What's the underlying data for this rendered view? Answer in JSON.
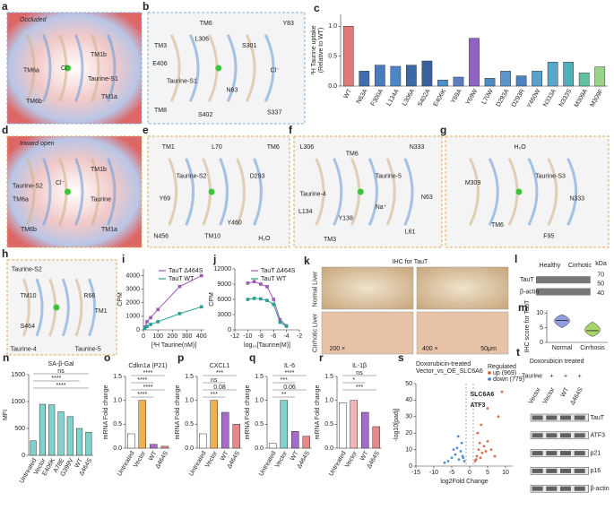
{
  "figure_panels": [
    {
      "letter": "a",
      "title": "Occluded",
      "labels": [
        "TM1b",
        "TM6a",
        "Cl⁻",
        "Taurine-S1",
        "TM6b",
        "TM1a"
      ]
    },
    {
      "letter": "b",
      "labels": [
        "TM6",
        "Y83",
        "L306",
        "S301",
        "TM3",
        "E406",
        "Cl⁻",
        "Taurine-S1",
        "TM8",
        "N63",
        "S402",
        "S337"
      ]
    },
    {
      "letter": "d",
      "title": "Inward open",
      "labels": [
        "TM1b",
        "Taurine-S2",
        "TM6a",
        "Cl⁻",
        "Taurine",
        "TM6b",
        "TM1a"
      ]
    },
    {
      "letter": "e",
      "labels": [
        "TM1",
        "L70",
        "TM6",
        "Taurine-S2",
        "D293",
        "Y69",
        "N456",
        "TM10",
        "Y460",
        "H₂O"
      ]
    },
    {
      "letter": "f",
      "labels": [
        "L306",
        "TM6",
        "N333",
        "Taurine-5",
        "Taurine-4",
        "L134",
        "Y138",
        "Na⁺",
        "N63",
        "TM3",
        "L61"
      ]
    },
    {
      "letter": "g",
      "labels": [
        "H₂O",
        "Taurine-S3",
        "M309",
        "N333",
        "TM6",
        "F95"
      ]
    },
    {
      "letter": "h",
      "labels": [
        "Taurine-S2",
        "TM10",
        "R66",
        "TM1",
        "S464",
        "Taurine-4",
        "Taurine-5"
      ]
    },
    {
      "letter": "k",
      "title": "IHC for TauT",
      "labels": [
        "Normal Liver",
        "Cirrhotic Liver",
        "200 ×",
        "400 ×",
        "50μm"
      ]
    },
    {
      "letter": "l",
      "labels": [
        "Healthy",
        "Cirrhotic",
        "TauT",
        "β-actin",
        "kDa",
        "70",
        "50",
        "40"
      ]
    },
    {
      "letter": "t",
      "labels": [
        "Doxorubicin treated",
        "Taurine",
        "-",
        "+",
        "+",
        "+",
        "Vector",
        "Vector",
        "WT",
        "Δ464S",
        "TauT",
        "ATF3",
        "p21",
        "p16",
        "β-actin"
      ]
    }
  ],
  "chart_data": [
    {
      "type": "bar",
      "panel": "c",
      "ylabel": [
        "³H Taurine uptake",
        "(Relative to WT)"
      ],
      "categories": [
        "WT",
        "N63A",
        "F300A",
        "L134A",
        "L306A",
        "S402A",
        "E406K",
        "Y69A",
        "Y69W",
        "L70W",
        "D293A",
        "D293R",
        "Y460W",
        "N333A",
        "N333S",
        "M309A",
        "M309F"
      ],
      "values": [
        1.0,
        0.25,
        0.35,
        0.33,
        0.35,
        0.42,
        0.1,
        0.15,
        0.8,
        0.13,
        0.25,
        0.17,
        0.25,
        0.4,
        0.4,
        0.22,
        0.32
      ],
      "colors": [
        "#e07a7a",
        "#3f6fb0",
        "#4a7bbd",
        "#4c86c6",
        "#3b6aa8",
        "#3b5f9e",
        "#4d8fc9",
        "#5b7ec0",
        "#8e63c2",
        "#4f8cc6",
        "#5a95cc",
        "#4d82c0",
        "#5aa0d0",
        "#56a8c8",
        "#4eb0b8",
        "#62c0a0",
        "#9ad48a"
      ],
      "ylim": [
        0,
        1.2
      ],
      "yticks": [
        {
          "value": 0,
          "label": "0.0"
        },
        {
          "value": 0.5,
          "label": "0.5"
        },
        {
          "value": 1,
          "label": "1.0"
        }
      ]
    },
    {
      "type": "line",
      "panel": "i",
      "xlabel": "[³H Taurine(nM)]",
      "ylabel": "CPM",
      "x": [
        10,
        25,
        50,
        100,
        250,
        400
      ],
      "xlim": [
        0,
        420
      ],
      "xticks": [
        0,
        100,
        200,
        300,
        400
      ],
      "ylim": [
        0,
        4500
      ],
      "yticks": [
        0,
        1000,
        2000,
        3000,
        4000
      ],
      "series": [
        {
          "name": "TauT Δ464S",
          "color": "#9b59b6",
          "values": [
            200,
            600,
            900,
            1500,
            3200,
            4000
          ]
        },
        {
          "name": "TauT WT",
          "color": "#2a9d8f",
          "values": [
            100,
            250,
            400,
            600,
            1200,
            1700
          ]
        }
      ]
    },
    {
      "type": "line",
      "panel": "j",
      "xlabel": "log₁₀[Taurine(M)]",
      "ylabel": "CPM",
      "x": [
        -10,
        -9,
        -8,
        -7,
        -6,
        -5,
        -4
      ],
      "xlim": [
        -12,
        -2
      ],
      "xticks": [
        -12,
        -10,
        -8,
        -6,
        -4,
        -2
      ],
      "ylim": [
        0,
        12000
      ],
      "yticks": [
        0,
        3000,
        6000,
        9000,
        12000
      ],
      "series": [
        {
          "name": "TauT Δ464S",
          "color": "#9b59b6",
          "values": [
            9200,
            9500,
            9000,
            8500,
            6000,
            2000,
            800
          ]
        },
        {
          "name": "TauT WT",
          "color": "#2a9d8f",
          "values": [
            6000,
            6200,
            6100,
            5800,
            5000,
            1500,
            700
          ]
        }
      ]
    },
    {
      "type": "violin",
      "panel": "m",
      "ylabel": "IHC score for TauT",
      "categories": [
        "Normal",
        "Cirrhosis"
      ],
      "min": [
        5,
        2
      ],
      "median": [
        7.5,
        4
      ],
      "max": [
        9.5,
        7
      ],
      "colors": [
        "#8e9ee0",
        "#a6d66a"
      ],
      "ylim": [
        0,
        11
      ],
      "yticks": [
        0,
        5,
        10
      ]
    },
    {
      "type": "bar",
      "panel": "n",
      "title": "SA-β-Gal",
      "ylabel": "MFI",
      "categories": [
        "Untreated",
        "Vector",
        "E406K",
        "A78E",
        "G399V",
        "WT",
        "Δ464S"
      ],
      "values": [
        270,
        950,
        940,
        810,
        720,
        500,
        430
      ],
      "color": "#7fd3cc",
      "ylim": [
        0,
        1500
      ],
      "yticks": [
        0,
        500,
        1000,
        1500
      ],
      "annotations": [
        "ns",
        "****",
        "****"
      ]
    },
    {
      "type": "bar",
      "panel": "o",
      "title": "Cdkn1a (P21)",
      "ylabel": "mRNA Fold change",
      "categories": [
        "Untreated",
        "Vector",
        "WT",
        "Δ464S"
      ],
      "values": [
        0.3,
        1.0,
        0.08,
        0.04
      ],
      "colors": [
        "#ffffff",
        "#f3b04a",
        "#a46cc8",
        "#e58a8a"
      ],
      "ylim": [
        0,
        1.5
      ],
      "yticks": [
        {
          "value": 0,
          "label": "0.0"
        },
        {
          "value": 0.5,
          "label": "0.5"
        },
        {
          "value": 1,
          "label": "1.0"
        },
        {
          "value": 1.5,
          "label": "1.5"
        }
      ],
      "annotations": [
        "****",
        "****",
        "****",
        "****"
      ]
    },
    {
      "type": "bar",
      "panel": "p",
      "title": "CXCL1",
      "ylabel": "mRNA Fold change",
      "categories": [
        "Untreated",
        "Vector",
        "WT",
        "Δ464S"
      ],
      "values": [
        0.3,
        1.0,
        0.75,
        0.5
      ],
      "colors": [
        "#ffffff",
        "#f3b04a",
        "#a46cc8",
        "#e58a8a"
      ],
      "ylim": [
        0,
        1.5
      ],
      "yticks": [
        {
          "value": 0,
          "label": "0.0"
        },
        {
          "value": 0.5,
          "label": "0.5"
        },
        {
          "value": 1,
          "label": "1.0"
        },
        {
          "value": 1.5,
          "label": "1.5"
        }
      ],
      "annotations": [
        "***",
        "ns",
        "0.08",
        "***"
      ]
    },
    {
      "type": "bar",
      "panel": "q",
      "title": "IL-6",
      "ylabel": "mRNA Fold change",
      "categories": [
        "Untreated",
        "Vector",
        "WT",
        "Δ464S"
      ],
      "values": [
        0.1,
        1.0,
        0.35,
        0.25
      ],
      "colors": [
        "#ffffff",
        "#7fd3cc",
        "#a46cc8",
        "#e58a8a"
      ],
      "ylim": [
        0,
        1.5
      ],
      "yticks": [
        {
          "value": 0,
          "label": "0.0"
        },
        {
          "value": 0.5,
          "label": "0.5"
        },
        {
          "value": 1,
          "label": "1.0"
        },
        {
          "value": 1.5,
          "label": "1.5"
        }
      ],
      "annotations": [
        "****",
        "***",
        "0.06",
        "**"
      ]
    },
    {
      "type": "bar",
      "panel": "r",
      "title": "IL-1β",
      "ylabel": "mRNA Fold change",
      "categories": [
        "Untreated",
        "Vector",
        "WT",
        "Δ464S"
      ],
      "values": [
        0.95,
        1.0,
        0.75,
        0.45
      ],
      "colors": [
        "#ffffff",
        "#f3b6b6",
        "#a46cc8",
        "#e58a8a"
      ],
      "ylim": [
        0,
        1.5
      ],
      "yticks": [
        {
          "value": 0,
          "label": "0.0"
        },
        {
          "value": 0.5,
          "label": "0.5"
        },
        {
          "value": 1,
          "label": "1.0"
        },
        {
          "value": 1.5,
          "label": "1.5"
        }
      ],
      "annotations": [
        "ns",
        "*",
        "***"
      ]
    },
    {
      "type": "scatter",
      "panel": "s",
      "title": [
        "Doxorubicin-treated",
        "Vector_vs_OE_SLC6A6"
      ],
      "xlabel": "log2Fold Change",
      "ylabel": "-log10[padj]",
      "legend_title": "Regulated",
      "xlim": [
        -15,
        12
      ],
      "xticks": [
        -15,
        -10,
        -5,
        0,
        5,
        10
      ],
      "ylim": [
        0,
        50
      ],
      "yticks": [
        0,
        10,
        20,
        30,
        40,
        50
      ],
      "vlines": [
        -1,
        1
      ],
      "annotations": [
        "SLC6A6",
        "ATF3"
      ],
      "series": [
        {
          "name": "up (969)",
          "color": "#d9542c",
          "x": [
            1.5,
            2,
            2.5,
            3,
            3.5,
            4,
            5,
            6,
            7,
            2.2,
            1.8,
            3.2,
            4.5,
            2.8,
            8,
            9,
            5
          ],
          "values": [
            3,
            6,
            10,
            5,
            8,
            12,
            15,
            10,
            6,
            20,
            4,
            25,
            9,
            14,
            30,
            45,
            35
          ]
        },
        {
          "name": "down (779)",
          "color": "#3a78c2",
          "x": [
            -1.5,
            -2,
            -2.5,
            -3,
            -3.5,
            -4,
            -5,
            -6,
            -2.2,
            -1.8,
            -3.2,
            -4.5,
            -7
          ],
          "values": [
            3,
            6,
            9,
            4,
            11,
            7,
            5,
            3,
            14,
            5,
            18,
            10,
            2
          ]
        }
      ]
    }
  ]
}
